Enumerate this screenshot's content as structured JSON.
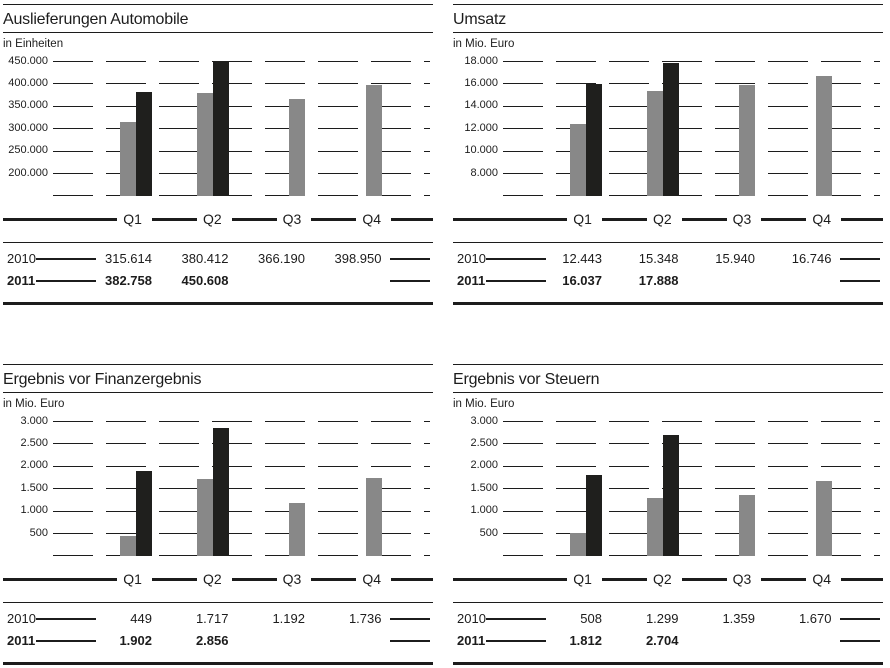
{
  "colors": {
    "background": "#ffffff",
    "text": "#1c1c1c",
    "rule": "#1c1c1c",
    "bar_2010": "#888888",
    "bar_2011": "#1f1f1d"
  },
  "chart_data": [
    {
      "type": "bar",
      "title": "Auslieferungen Automobile",
      "unit_label": "in Einheiten",
      "categories": [
        "Q1",
        "Q2",
        "Q3",
        "Q4"
      ],
      "y_axis": {
        "tick_labels": [
          "450.000",
          "400.000",
          "350.000",
          "300.000",
          "250.000",
          "200.000"
        ],
        "tick_step": 50000,
        "baseline_value": 150000,
        "max": 450000,
        "grid": "dashed"
      },
      "legend_position": "none",
      "series": [
        {
          "name": "2010",
          "color_key": "bar_2010",
          "values": [
            315614,
            380412,
            366190,
            398950
          ],
          "display": [
            "315.614",
            "380.412",
            "366.190",
            "398.950"
          ]
        },
        {
          "name": "2011",
          "color_key": "bar_2011",
          "values": [
            382758,
            450608,
            null,
            null
          ],
          "display": [
            "382.758",
            "450.608",
            "",
            ""
          ]
        }
      ]
    },
    {
      "type": "bar",
      "title": "Umsatz",
      "unit_label": "in Mio. Euro",
      "categories": [
        "Q1",
        "Q2",
        "Q3",
        "Q4"
      ],
      "y_axis": {
        "tick_labels": [
          "18.000",
          "16.000",
          "14.000",
          "12.000",
          "10.000",
          "8.000"
        ],
        "tick_step": 2000,
        "baseline_value": 6000,
        "max": 18000,
        "grid": "dashed"
      },
      "legend_position": "none",
      "series": [
        {
          "name": "2010",
          "color_key": "bar_2010",
          "values": [
            12443,
            15348,
            15940,
            16746
          ],
          "display": [
            "12.443",
            "15.348",
            "15.940",
            "16.746"
          ]
        },
        {
          "name": "2011",
          "color_key": "bar_2011",
          "values": [
            16037,
            17888,
            null,
            null
          ],
          "display": [
            "16.037",
            "17.888",
            "",
            ""
          ]
        }
      ]
    },
    {
      "type": "bar",
      "title": "Ergebnis vor Finanzergebnis",
      "unit_label": "in Mio. Euro",
      "categories": [
        "Q1",
        "Q2",
        "Q3",
        "Q4"
      ],
      "y_axis": {
        "tick_labels": [
          "3.000",
          "2.500",
          "2.000",
          "1.500",
          "1.000",
          "500"
        ],
        "tick_step": 500,
        "baseline_value": 0,
        "max": 3000,
        "grid": "dashed"
      },
      "legend_position": "none",
      "series": [
        {
          "name": "2010",
          "color_key": "bar_2010",
          "values": [
            449,
            1717,
            1192,
            1736
          ],
          "display": [
            "449",
            "1.717",
            "1.192",
            "1.736"
          ]
        },
        {
          "name": "2011",
          "color_key": "bar_2011",
          "values": [
            1902,
            2856,
            null,
            null
          ],
          "display": [
            "1.902",
            "2.856",
            "",
            ""
          ]
        }
      ]
    },
    {
      "type": "bar",
      "title": "Ergebnis vor Steuern",
      "unit_label": "in Mio. Euro",
      "categories": [
        "Q1",
        "Q2",
        "Q3",
        "Q4"
      ],
      "y_axis": {
        "tick_labels": [
          "3.000",
          "2.500",
          "2.000",
          "1.500",
          "1.000",
          "500"
        ],
        "tick_step": 500,
        "baseline_value": 0,
        "max": 3000,
        "grid": "dashed"
      },
      "legend_position": "none",
      "series": [
        {
          "name": "2010",
          "color_key": "bar_2010",
          "values": [
            508,
            1299,
            1359,
            1670
          ],
          "display": [
            "508",
            "1.299",
            "1.359",
            "1.670"
          ]
        },
        {
          "name": "2011",
          "color_key": "bar_2011",
          "values": [
            1812,
            2704,
            null,
            null
          ],
          "display": [
            "1.812",
            "2.704",
            "",
            ""
          ]
        }
      ]
    }
  ]
}
